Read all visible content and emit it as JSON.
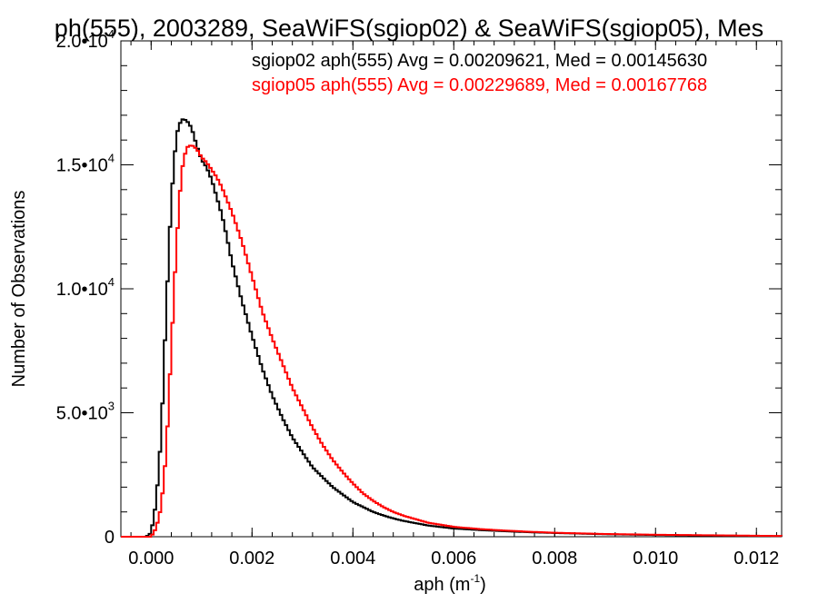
{
  "chart_data": {
    "type": "line",
    "title": "ph(555), 2003289, SeaWiFS(sgiop02) & SeaWiFS(sgiop05), Mes",
    "xlabel": {
      "base": "aph (m",
      "sup": "-1",
      "end": ")"
    },
    "ylabel": "Number of Observations",
    "xlim": [
      -0.0006,
      0.0125
    ],
    "ylim": [
      0,
      20000
    ],
    "xticks": [
      0.0,
      0.002,
      0.004,
      0.006,
      0.008,
      0.01,
      0.012
    ],
    "xtick_labels": [
      "0.000",
      "0.002",
      "0.004",
      "0.006",
      "0.008",
      "0.010",
      "0.012"
    ],
    "yticks": [
      0,
      5000,
      10000,
      15000,
      20000
    ],
    "ytick_labels": [
      {
        "base": "0",
        "sup": ""
      },
      {
        "base": "5.0•10",
        "sup": "3"
      },
      {
        "base": "1.0•10",
        "sup": "4"
      },
      {
        "base": "1.5•10",
        "sup": "4"
      },
      {
        "base": "2.0•10",
        "sup": "4"
      }
    ],
    "bin_width": 5e-05,
    "series": [
      {
        "name": "sgiop02",
        "label": "sgiop02 aph(555) Avg = 0.00209621, Med = 0.00145630",
        "color": "#000000",
        "x": [
          -0.0001,
          0.0,
          0.0001,
          0.0002,
          0.0003,
          0.0004,
          0.0005,
          0.0006,
          0.0007,
          0.0008,
          0.0009,
          0.001,
          0.0011,
          0.0012,
          0.0013,
          0.0014,
          0.0015,
          0.0016,
          0.0017,
          0.0018,
          0.0019,
          0.002,
          0.0022,
          0.0024,
          0.0026,
          0.0028,
          0.003,
          0.0032,
          0.0034,
          0.0036,
          0.0038,
          0.004,
          0.0042,
          0.0044,
          0.0046,
          0.0048,
          0.005,
          0.0055,
          0.006,
          0.0065,
          0.007,
          0.0075,
          0.008,
          0.009,
          0.01,
          0.011,
          0.012,
          0.0125
        ],
        "y": [
          0,
          150,
          1400,
          4100,
          9200,
          13600,
          16200,
          16850,
          16800,
          16500,
          15800,
          15200,
          14900,
          14400,
          13700,
          13000,
          12100,
          11100,
          10300,
          9500,
          8800,
          8100,
          6800,
          5700,
          4800,
          4000,
          3400,
          2800,
          2400,
          2000,
          1700,
          1400,
          1200,
          1000,
          860,
          740,
          640,
          450,
          330,
          270,
          220,
          180,
          150,
          100,
          70,
          50,
          30,
          20
        ]
      },
      {
        "name": "sgiop05",
        "label": "sgiop05 aph(555) Avg = 0.00229689, Med = 0.00167768",
        "color": "#ff0000",
        "x": [
          0.0,
          0.0001,
          0.0002,
          0.0003,
          0.0004,
          0.0005,
          0.0006,
          0.0007,
          0.0008,
          0.0009,
          0.001,
          0.0011,
          0.0012,
          0.0013,
          0.0014,
          0.0015,
          0.0016,
          0.0017,
          0.0018,
          0.0019,
          0.002,
          0.0021,
          0.0022,
          0.0024,
          0.0026,
          0.0028,
          0.003,
          0.0032,
          0.0034,
          0.0036,
          0.0038,
          0.004,
          0.0042,
          0.0044,
          0.0046,
          0.0048,
          0.005,
          0.0055,
          0.006,
          0.0065,
          0.007,
          0.0075,
          0.008,
          0.009,
          0.01,
          0.011,
          0.012,
          0.0125
        ],
        "y": [
          0,
          350,
          1200,
          3400,
          7600,
          11700,
          14700,
          15700,
          15800,
          15650,
          15300,
          15100,
          14800,
          14500,
          14100,
          13600,
          13100,
          12500,
          11900,
          11200,
          10500,
          9800,
          9100,
          8000,
          7000,
          6000,
          5200,
          4400,
          3700,
          3100,
          2600,
          2150,
          1750,
          1450,
          1200,
          1000,
          850,
          560,
          400,
          310,
          250,
          200,
          160,
          110,
          80,
          60,
          40,
          30
        ]
      }
    ]
  }
}
